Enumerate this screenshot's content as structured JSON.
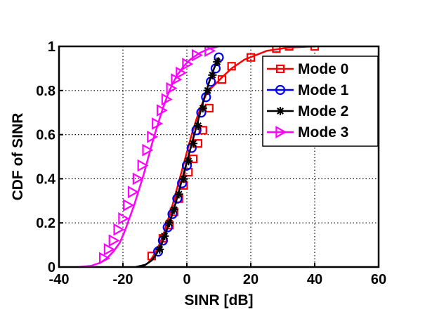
{
  "chart_data": {
    "type": "line",
    "title": "",
    "xlabel": "SINR [dB]",
    "ylabel": "CDF of SINR",
    "xlim": [
      -40,
      60
    ],
    "ylim": [
      0,
      1
    ],
    "xticks": [
      -40,
      -20,
      0,
      20,
      40,
      60
    ],
    "yticks": [
      0,
      0.2,
      0.4,
      0.6,
      0.8,
      1
    ],
    "xtick_labels": [
      "-40",
      "-20",
      "0",
      "20",
      "40",
      "60"
    ],
    "ytick_labels": [
      "0",
      "0.2",
      "0.4",
      "0.6",
      "0.8",
      "1"
    ],
    "grid": true,
    "legend_position": "top-right",
    "series": [
      {
        "name": "Mode 0",
        "color": "#ff0000",
        "marker": "square",
        "x": [
          -14,
          -12,
          -10.5,
          -9,
          -7.5,
          -6,
          -4.5,
          -3,
          -1.5,
          0,
          1.5,
          3,
          4.5,
          6,
          7.5,
          9,
          11,
          14,
          18,
          25,
          32,
          40
        ],
        "y": [
          0,
          0.02,
          0.05,
          0.09,
          0.14,
          0.21,
          0.28,
          0.36,
          0.44,
          0.52,
          0.6,
          0.67,
          0.73,
          0.78,
          0.81,
          0.83,
          0.86,
          0.9,
          0.94,
          0.98,
          0.995,
          1.0
        ],
        "marker_x": [
          -11,
          -7.5,
          -5.5,
          -4,
          -2.5,
          -1,
          0.5,
          2,
          3.5,
          5,
          7,
          11,
          14,
          20,
          28,
          32,
          40
        ],
        "marker_y": [
          0.05,
          0.13,
          0.19,
          0.25,
          0.31,
          0.37,
          0.43,
          0.49,
          0.56,
          0.62,
          0.72,
          0.85,
          0.91,
          0.95,
          0.99,
          1.0,
          1.0
        ]
      },
      {
        "name": "Mode 1",
        "color": "#0000ff",
        "marker": "circle",
        "x": [
          -16,
          -13,
          -11,
          -9.5,
          -8,
          -6.5,
          -5,
          -3.5,
          -2,
          -0.5,
          1,
          2.5,
          4,
          5.5,
          7,
          8.5,
          10
        ],
        "y": [
          0,
          0.01,
          0.03,
          0.06,
          0.1,
          0.16,
          0.22,
          0.29,
          0.37,
          0.45,
          0.53,
          0.61,
          0.69,
          0.77,
          0.84,
          0.9,
          0.95
        ],
        "marker_x": [
          -9,
          -7.5,
          -6,
          -4.5,
          -3,
          -1.5,
          0,
          1.5,
          3,
          4.5,
          6,
          7.5,
          9,
          10
        ],
        "marker_y": [
          0.07,
          0.12,
          0.18,
          0.24,
          0.31,
          0.38,
          0.46,
          0.54,
          0.62,
          0.7,
          0.77,
          0.84,
          0.9,
          0.95
        ]
      },
      {
        "name": "Mode 2",
        "color": "#000000",
        "marker": "asterisk",
        "x": [
          -16,
          -13,
          -11,
          -9.5,
          -8,
          -6.5,
          -5,
          -3.5,
          -2,
          -0.5,
          1,
          2.5,
          4,
          5.5,
          7,
          8.5,
          10
        ],
        "y": [
          0,
          0.01,
          0.03,
          0.06,
          0.1,
          0.16,
          0.22,
          0.29,
          0.37,
          0.45,
          0.53,
          0.61,
          0.69,
          0.77,
          0.84,
          0.9,
          0.95
        ],
        "marker_x": [
          -8.5,
          -7,
          -5.5,
          -4,
          -2.5,
          -1,
          0.5,
          2,
          3.5,
          5,
          6.5,
          8,
          9.5
        ],
        "marker_y": [
          0.08,
          0.14,
          0.2,
          0.26,
          0.33,
          0.4,
          0.48,
          0.56,
          0.64,
          0.72,
          0.8,
          0.87,
          0.93
        ]
      },
      {
        "name": "Mode 3",
        "color": "#ff00ff",
        "marker": "triangle-right",
        "x": [
          -34,
          -30,
          -27,
          -25,
          -23,
          -21,
          -19.5,
          -18,
          -16.5,
          -15,
          -13.5,
          -12,
          -10.5,
          -9,
          -7.5,
          -6,
          -4.5,
          -3,
          -1,
          1,
          4,
          7,
          10
        ],
        "y": [
          0,
          0.005,
          0.02,
          0.04,
          0.07,
          0.11,
          0.16,
          0.22,
          0.28,
          0.35,
          0.42,
          0.5,
          0.58,
          0.65,
          0.72,
          0.78,
          0.83,
          0.87,
          0.91,
          0.94,
          0.97,
          0.99,
          1.0
        ],
        "marker_x": [
          -26,
          -24.5,
          -23,
          -21.5,
          -20,
          -18.5,
          -17,
          -15.5,
          -14,
          -12.5,
          -11,
          -9.5,
          -8,
          -6.5,
          -5,
          -3.5,
          -2,
          0,
          3,
          7
        ],
        "marker_y": [
          0.04,
          0.08,
          0.12,
          0.17,
          0.22,
          0.28,
          0.34,
          0.4,
          0.46,
          0.53,
          0.59,
          0.65,
          0.71,
          0.76,
          0.81,
          0.85,
          0.88,
          0.92,
          0.96,
          0.98
        ]
      }
    ]
  }
}
